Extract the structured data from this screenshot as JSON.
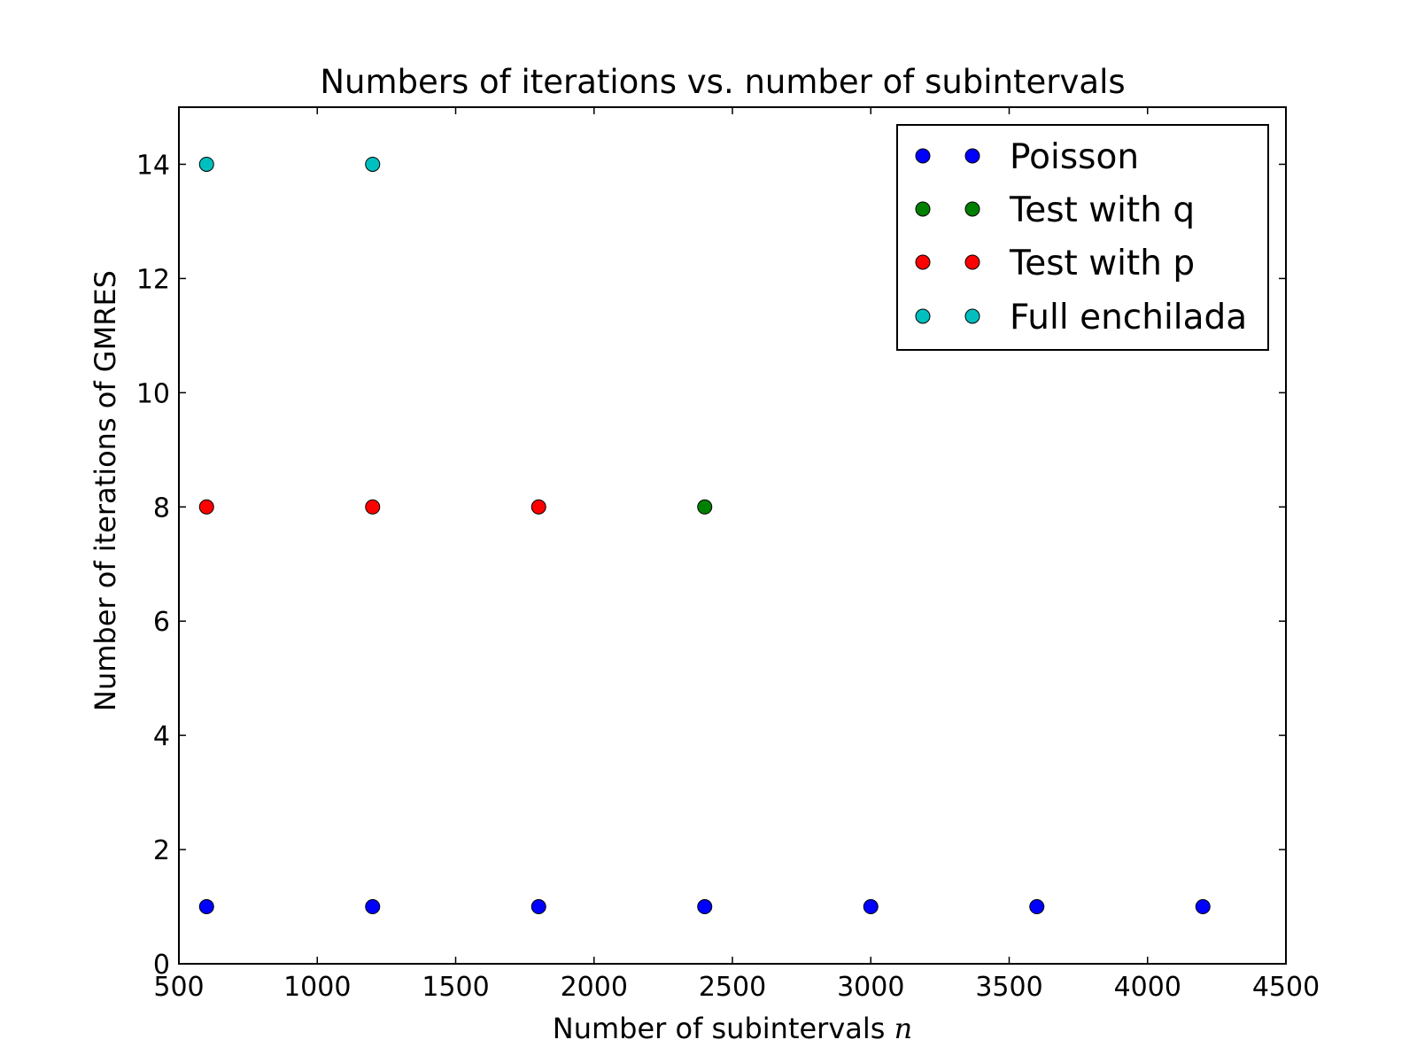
{
  "chart_data": {
    "type": "scatter",
    "title": "Numbers of iterations vs. number of subintervals",
    "xlabel": "Number of subintervals ",
    "xlabel_var": "n",
    "ylabel": "Number of iterations of GMRES",
    "xlim": [
      500,
      4500
    ],
    "ylim": [
      0,
      15
    ],
    "xticks": [
      500,
      1000,
      1500,
      2000,
      2500,
      3000,
      3500,
      4000,
      4500
    ],
    "yticks": [
      0,
      2,
      4,
      6,
      8,
      10,
      12,
      14
    ],
    "grid": false,
    "legend_position": "upper right",
    "series": [
      {
        "name": "Poisson",
        "color": "#0000ff",
        "points": [
          [
            600,
            1
          ],
          [
            1200,
            1
          ],
          [
            1800,
            1
          ],
          [
            2400,
            1
          ],
          [
            3000,
            1
          ],
          [
            3600,
            1
          ],
          [
            4200,
            1
          ]
        ]
      },
      {
        "name": "Test with q",
        "color": "#008000",
        "points": [
          [
            2400,
            8
          ]
        ]
      },
      {
        "name": "Test with p",
        "color": "#ff0000",
        "points": [
          [
            600,
            8
          ],
          [
            1200,
            8
          ],
          [
            1800,
            8
          ]
        ]
      },
      {
        "name": "Full enchilada",
        "color": "#00bfbf",
        "points": [
          [
            600,
            14
          ],
          [
            1200,
            14
          ]
        ]
      }
    ]
  }
}
